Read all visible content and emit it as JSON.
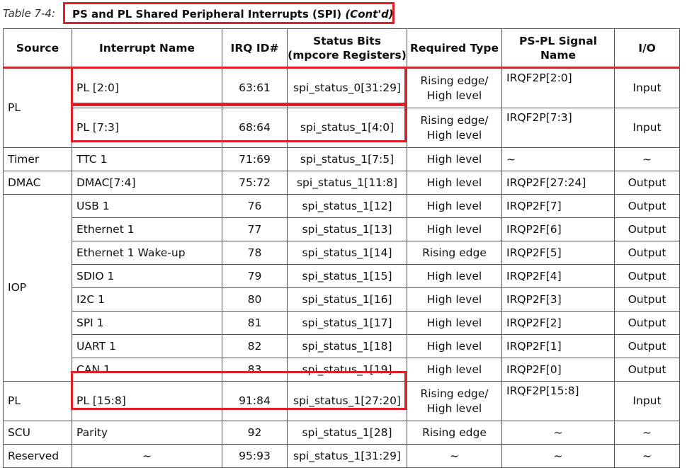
{
  "caption": {
    "table_label": "Table 7-4:",
    "title": "PS and PL Shared Peripheral Interrupts (SPI)",
    "title_suffix": "(Cont'd)"
  },
  "headers": {
    "source": "Source",
    "interrupt_name": "Interrupt Name",
    "irq_id": "IRQ ID#",
    "status_bits_line1": "Status Bits",
    "status_bits_line2": "(mpcore Registers)",
    "required_type": "Required Type",
    "signal_name": "PS-PL Signal Name",
    "io": "I/O"
  },
  "sources": {
    "pl_a": "PL",
    "timer": "Timer",
    "dmac": "DMAC",
    "iop": "IOP",
    "pl_b": "PL",
    "scu": "SCU",
    "reserved": "Reserved"
  },
  "rows": [
    {
      "name": "PL [2:0]",
      "irq": "63:61",
      "status": "spi_status_0[31:29]",
      "type1": "Rising edge/",
      "type2": "High level",
      "signal": "IRQF2P[2:0]",
      "io": "Input"
    },
    {
      "name": "PL [7:3]",
      "irq": "68:64",
      "status": "spi_status_1[4:0]",
      "type1": "Rising edge/",
      "type2": "High level",
      "signal": "IRQF2P[7:3]",
      "io": "Input"
    },
    {
      "name": "TTC 1",
      "irq": "71:69",
      "status": "spi_status_1[7:5]",
      "type": "High level",
      "signal": "~",
      "io": "~"
    },
    {
      "name": "DMAC[7:4]",
      "irq": "75:72",
      "status": "spi_status_1[11:8]",
      "type": "High level",
      "signal": "IRQP2F[27:24]",
      "io": "Output"
    },
    {
      "name": "USB 1",
      "irq": "76",
      "status": "spi_status_1[12]",
      "type": "High level",
      "signal": "IRQP2F[7]",
      "io": "Output"
    },
    {
      "name": "Ethernet 1",
      "irq": "77",
      "status": "spi_status_1[13]",
      "type": "High level",
      "signal": "IRQP2F[6]",
      "io": "Output"
    },
    {
      "name": "Ethernet 1 Wake-up",
      "irq": "78",
      "status": "spi_status_1[14]",
      "type": "Rising edge",
      "signal": "IRQP2F[5]",
      "io": "Output"
    },
    {
      "name": "SDIO 1",
      "irq": "79",
      "status": "spi_status_1[15]",
      "type": "High level",
      "signal": "IRQP2F[4]",
      "io": "Output"
    },
    {
      "name": "I2C 1",
      "irq": "80",
      "status": "spi_status_1[16]",
      "type": "High level",
      "signal": "IRQP2F[3]",
      "io": "Output"
    },
    {
      "name": "SPI 1",
      "irq": "81",
      "status": "spi_status_1[17]",
      "type": "High level",
      "signal": "IRQP2F[2]",
      "io": "Output"
    },
    {
      "name": "UART 1",
      "irq": "82",
      "status": "spi_status_1[18]",
      "type": "High level",
      "signal": "IRQP2F[1]",
      "io": "Output"
    },
    {
      "name": "CAN 1",
      "irq": "83",
      "status": "spi_status_1[19]",
      "type": "High level",
      "signal": "IRQP2F[0]",
      "io": "Output"
    },
    {
      "name": "PL [15:8]",
      "irq": "91:84",
      "status": "spi_status_1[27:20]",
      "type1": "Rising edge/",
      "type2": "High level",
      "signal": "IRQF2P[15:8]",
      "io": "Input"
    },
    {
      "name": "Parity",
      "irq": "92",
      "status": "spi_status_1[28]",
      "type": "Rising edge",
      "signal": "~",
      "io": "~"
    },
    {
      "name": "~",
      "irq": "95:93",
      "status": "spi_status_1[31:29]",
      "type": "~",
      "signal": "~",
      "io": "~"
    }
  ],
  "highlight_color": "#e21f26",
  "header_rule_color": "#c72a2f"
}
